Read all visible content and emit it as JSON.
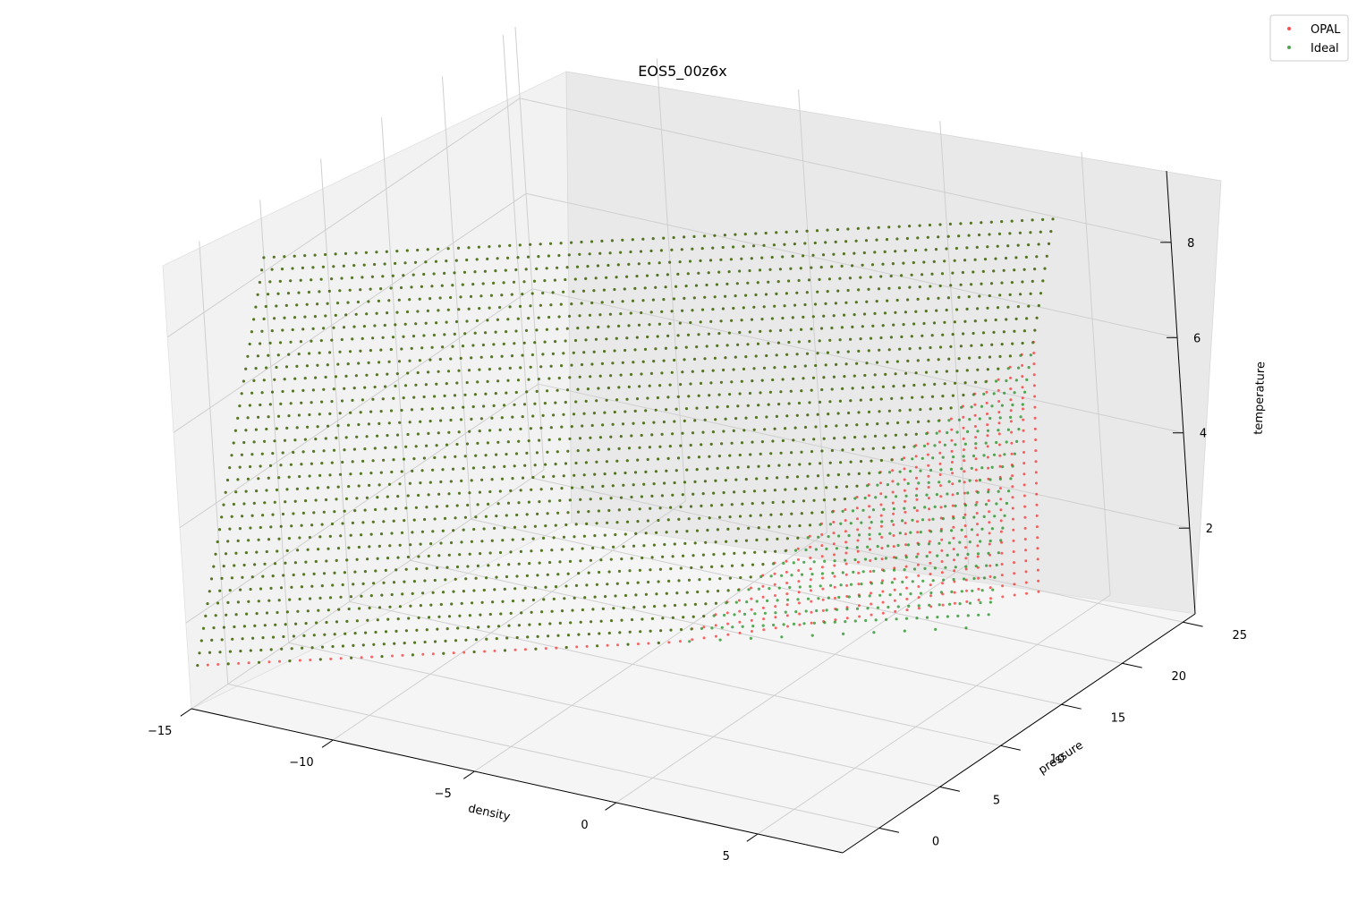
{
  "chart_data": {
    "type": "scatter",
    "projection": "3d",
    "title": "EOS5_00z6x",
    "xlabel": "density",
    "ylabel": "pressure",
    "zlabel": "temperature",
    "xlim": [
      -15,
      8
    ],
    "ylim": [
      -3,
      26
    ],
    "zlim": [
      0.2,
      9.5
    ],
    "x_ticks": [
      -15,
      -10,
      -5,
      0,
      5
    ],
    "y_ticks": [
      0,
      5,
      10,
      15,
      20,
      25
    ],
    "z_ticks": [
      2,
      4,
      6,
      8
    ],
    "x_tick_labels": [
      "−15",
      "−10",
      "−5",
      "0",
      "5"
    ],
    "y_tick_labels": [
      "0",
      "5",
      "10",
      "15",
      "20",
      "25"
    ],
    "z_tick_labels": [
      "2",
      "4",
      "6",
      "8"
    ],
    "grid": true,
    "legend_position": "top-right",
    "series": [
      {
        "name": "OPAL",
        "color": "#ff0000",
        "description_grid": {
          "density_range": [
            -14,
            5.5
          ],
          "log_temperature_range": [
            1.5,
            8.8
          ],
          "density_columns": 78,
          "temperature_rows": 34
        }
      },
      {
        "name": "Ideal",
        "color": "#008000",
        "description_grid": {
          "density_range": [
            -14,
            5.5
          ],
          "log_temperature_range": [
            1.5,
            8.8
          ],
          "density_columns": 78,
          "temperature_rows": 34
        }
      }
    ]
  }
}
